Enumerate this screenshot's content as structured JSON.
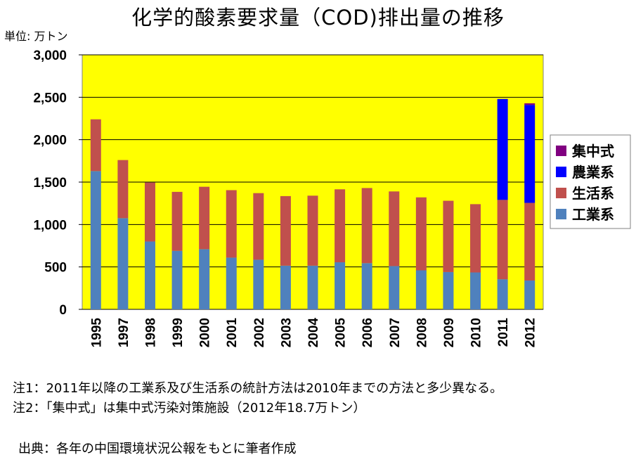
{
  "title": "化学的酸素要求量（COD)排出量の推移",
  "unit_label": "単位: 万トン",
  "notes": [
    "注1：2011年以降の工業系及び生活系の統計方法は2010年までの方法と多少異なる。",
    "注2：「集中式」は集中式汚染対策施設（2012年18.7万トン）"
  ],
  "source": "出典：各年の中国環境状況公報をもとに筆者作成",
  "chart_data": {
    "type": "bar",
    "stacked": true,
    "categories": [
      "1995",
      "1997",
      "1998",
      "1999",
      "2000",
      "2001",
      "2002",
      "2003",
      "2004",
      "2005",
      "2006",
      "2007",
      "2008",
      "2009",
      "2010",
      "2011",
      "2012"
    ],
    "y_tick_labels": [
      "0",
      "500",
      "1,000",
      "1,500",
      "2,000",
      "2,500",
      "3,000"
    ],
    "ylim": [
      0,
      3000
    ],
    "plot_background": "#FFFF00",
    "grid": true,
    "legend_position": "right",
    "series": [
      {
        "name": "工業系",
        "color": "#4F81BD",
        "values": [
          1630,
          1075,
          800,
          690,
          710,
          610,
          585,
          515,
          515,
          555,
          545,
          510,
          460,
          440,
          435,
          355,
          340
        ]
      },
      {
        "name": "生活系",
        "color": "#C0504D",
        "values": [
          610,
          685,
          695,
          695,
          735,
          795,
          785,
          820,
          825,
          860,
          885,
          880,
          860,
          840,
          805,
          935,
          915
        ]
      },
      {
        "name": "農業系",
        "color": "#0000FF",
        "values": [
          0,
          0,
          0,
          0,
          0,
          0,
          0,
          0,
          0,
          0,
          0,
          0,
          0,
          0,
          0,
          1190,
          1155
        ]
      },
      {
        "name": "集中式",
        "color": "#800080",
        "values": [
          0,
          0,
          0,
          0,
          0,
          0,
          0,
          0,
          0,
          0,
          0,
          0,
          0,
          0,
          0,
          0,
          19
        ]
      }
    ],
    "legend_order": [
      "集中式",
      "農業系",
      "生活系",
      "工業系"
    ]
  }
}
